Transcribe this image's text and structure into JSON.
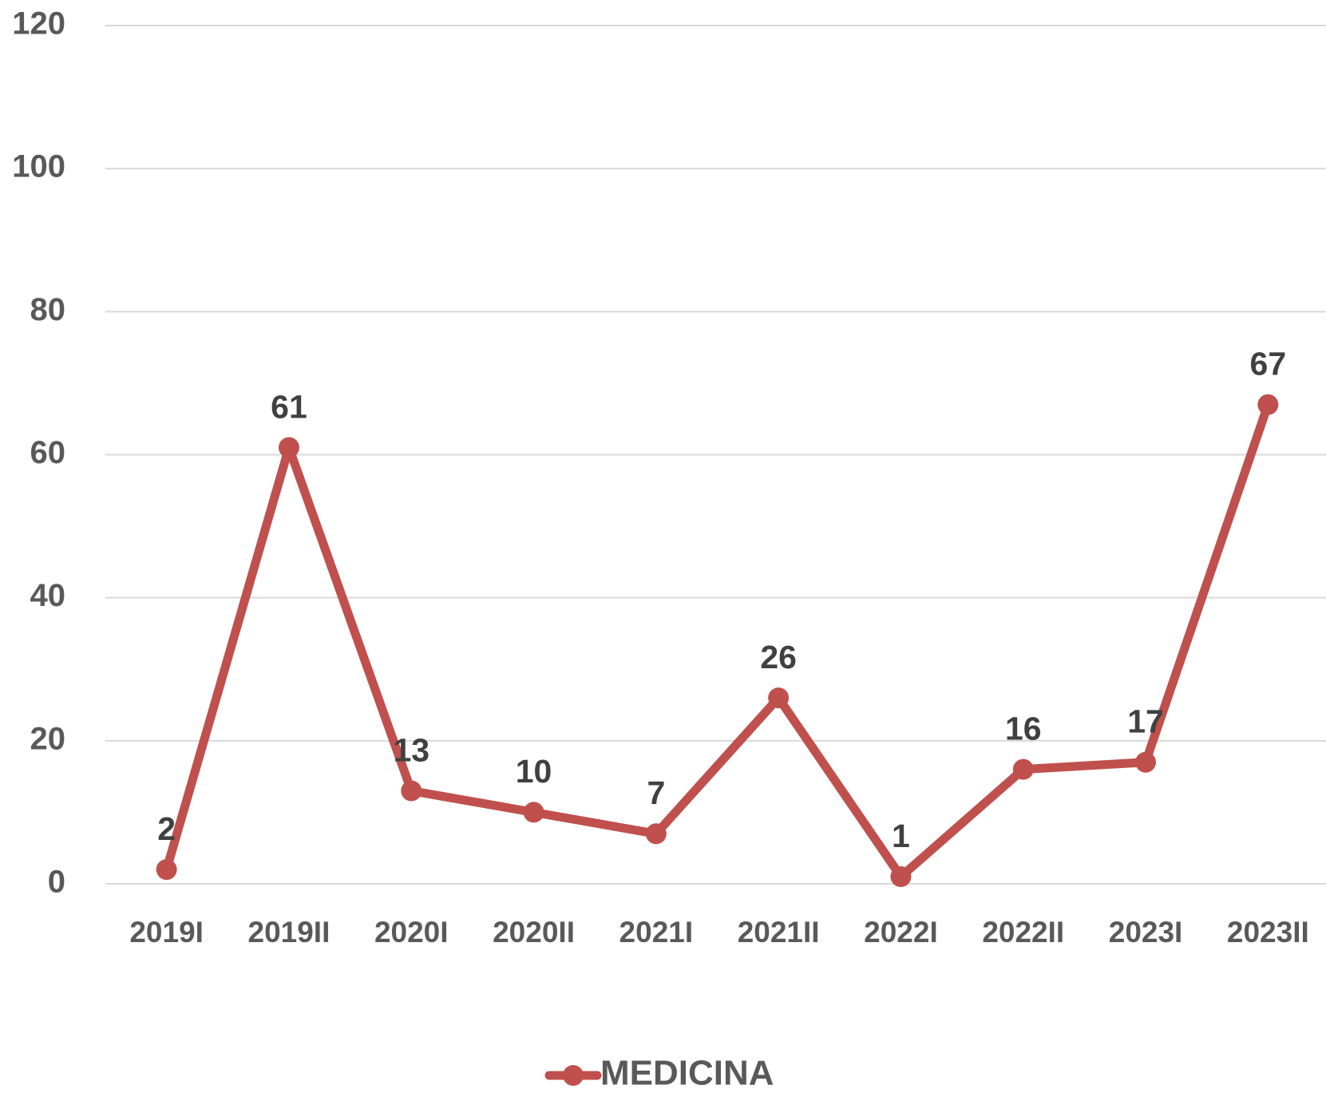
{
  "chart_data": {
    "type": "line",
    "categories": [
      "2019I",
      "2019II",
      "2020I",
      "2020II",
      "2021I",
      "2021II",
      "2022I",
      "2022II",
      "2023I",
      "2023II"
    ],
    "series": [
      {
        "name": "MEDICINA",
        "color": "#c0504d",
        "values": [
          2,
          61,
          13,
          10,
          7,
          26,
          1,
          16,
          17,
          67
        ]
      }
    ],
    "ylim": [
      0,
      120
    ],
    "yticks": [
      0,
      20,
      40,
      60,
      80,
      100,
      120
    ],
    "grid": true,
    "legend": "bottom"
  }
}
